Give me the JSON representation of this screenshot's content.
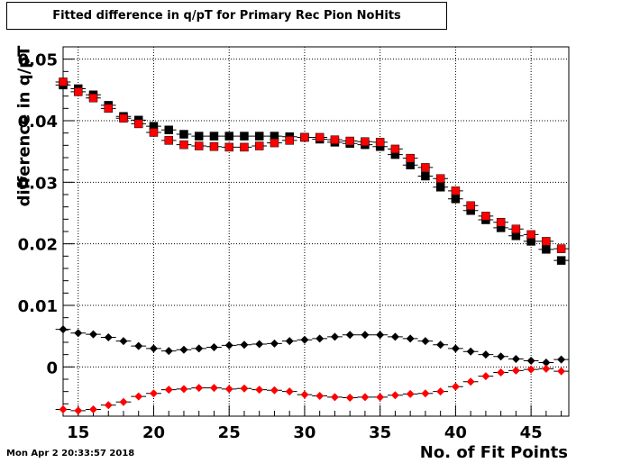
{
  "title": "Fitted difference in q/pT for Primary Rec Pion NoHits",
  "xlabel": "No. of Fit Points",
  "ylabel": "difference in q/pT",
  "timestamp": "Mon Apr  2 20:33:57 2018",
  "chart_data": {
    "type": "scatter",
    "xlim": [
      14,
      47.5
    ],
    "ylim": [
      -0.008,
      0.052
    ],
    "x_ticks": [
      15,
      20,
      25,
      30,
      35,
      40,
      45
    ],
    "y_ticks": [
      0,
      0.01,
      0.02,
      0.03,
      0.04,
      0.05
    ],
    "y_tick_labels": [
      "0",
      "0.01",
      "0.02",
      "0.03",
      "0.04",
      "0.05"
    ],
    "grid": true,
    "x": [
      14,
      15,
      16,
      17,
      18,
      19,
      20,
      21,
      22,
      23,
      24,
      25,
      26,
      27,
      28,
      29,
      30,
      31,
      32,
      33,
      34,
      35,
      36,
      37,
      38,
      39,
      40,
      41,
      42,
      43,
      44,
      45,
      46,
      47
    ],
    "series": [
      {
        "marker": "square",
        "color": "#000000",
        "values": [
          0.0458,
          0.0452,
          0.0442,
          0.0425,
          0.0407,
          0.0401,
          0.0391,
          0.0385,
          0.0378,
          0.0375,
          0.0375,
          0.0375,
          0.0375,
          0.0375,
          0.0375,
          0.0374,
          0.0373,
          0.037,
          0.0365,
          0.0363,
          0.0361,
          0.0358,
          0.0345,
          0.0328,
          0.031,
          0.0292,
          0.0273,
          0.0254,
          0.0239,
          0.0226,
          0.0213,
          0.0204,
          0.0191,
          0.0173
        ]
      },
      {
        "marker": "square",
        "color": "#ff0000",
        "values": [
          0.0463,
          0.0447,
          0.0437,
          0.042,
          0.0404,
          0.0395,
          0.0381,
          0.0368,
          0.0361,
          0.0359,
          0.0358,
          0.0357,
          0.0357,
          0.0359,
          0.0364,
          0.0368,
          0.0373,
          0.0373,
          0.0369,
          0.0367,
          0.0366,
          0.0365,
          0.0354,
          0.0339,
          0.0324,
          0.0306,
          0.0286,
          0.0262,
          0.0245,
          0.0235,
          0.0224,
          0.0215,
          0.0204,
          0.0192
        ]
      },
      {
        "marker": "diamond",
        "color": "#000000",
        "values": [
          0.0061,
          0.0055,
          0.0053,
          0.0048,
          0.0042,
          0.0034,
          0.003,
          0.0026,
          0.0028,
          0.003,
          0.0032,
          0.0035,
          0.0036,
          0.0037,
          0.0038,
          0.0042,
          0.0044,
          0.0046,
          0.0049,
          0.0052,
          0.0052,
          0.0052,
          0.0049,
          0.0046,
          0.0042,
          0.0036,
          0.003,
          0.0025,
          0.002,
          0.0017,
          0.0013,
          0.001,
          0.0007,
          0.0012
        ]
      },
      {
        "marker": "diamond",
        "color": "#ff0000",
        "values": [
          -0.0069,
          -0.0071,
          -0.0069,
          -0.0062,
          -0.0057,
          -0.0048,
          -0.0043,
          -0.0037,
          -0.0036,
          -0.0034,
          -0.0034,
          -0.0036,
          -0.0035,
          -0.0037,
          -0.0038,
          -0.004,
          -0.0045,
          -0.0047,
          -0.0049,
          -0.005,
          -0.0049,
          -0.0049,
          -0.0046,
          -0.0044,
          -0.0043,
          -0.004,
          -0.0032,
          -0.0024,
          -0.0015,
          -0.0009,
          -0.0006,
          -0.0004,
          -0.0003,
          -0.0007
        ]
      }
    ]
  }
}
